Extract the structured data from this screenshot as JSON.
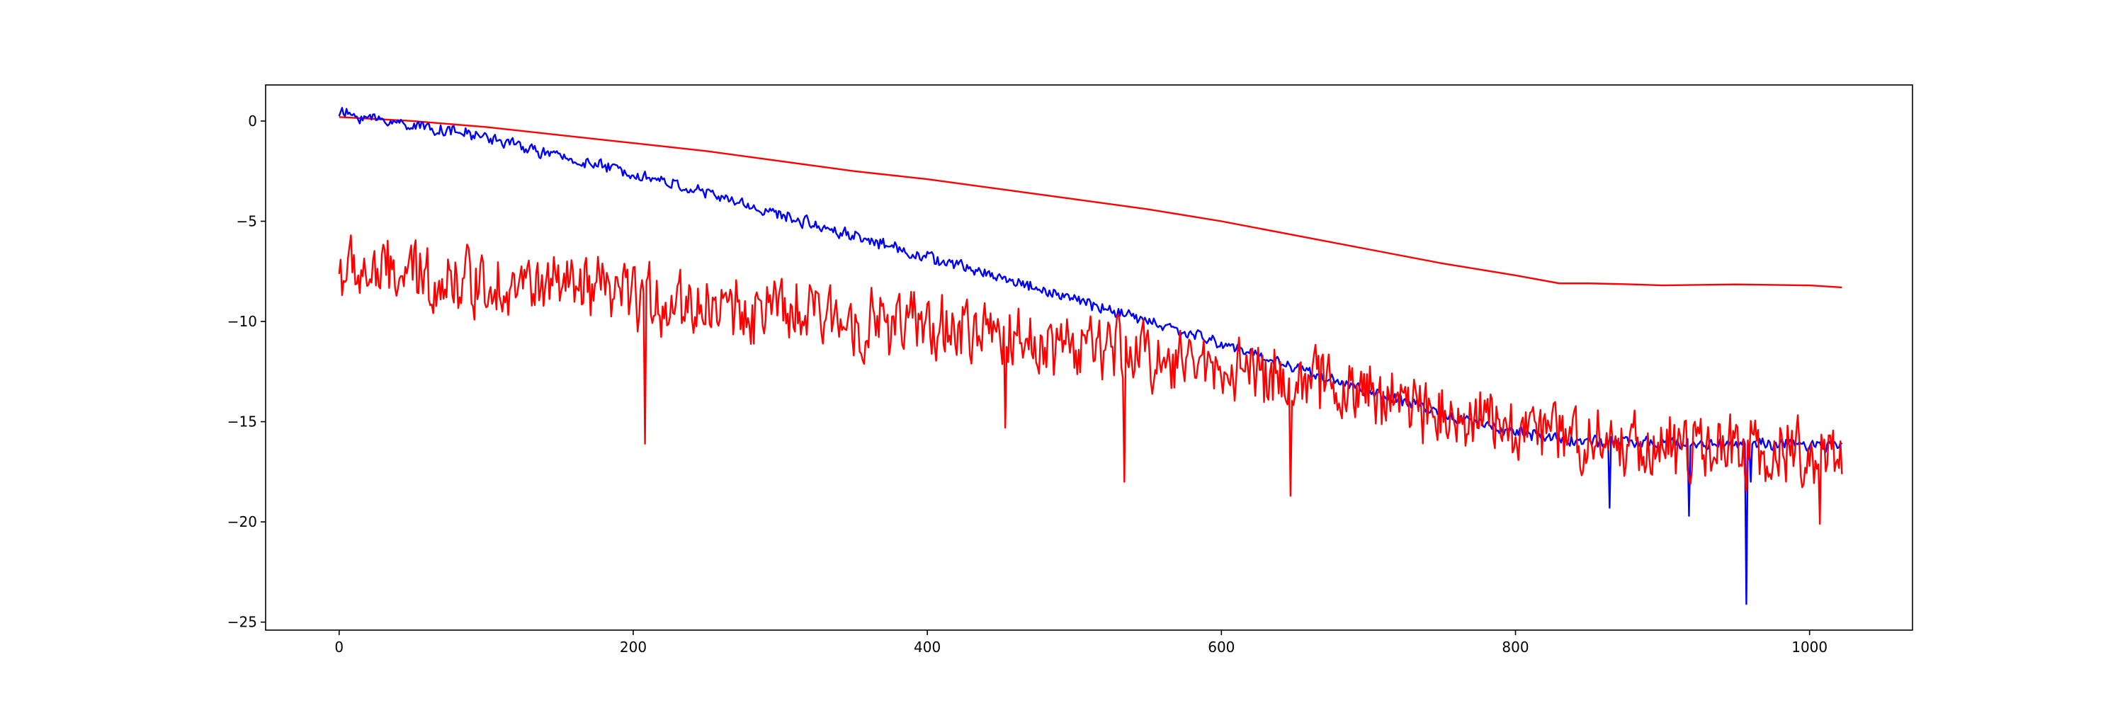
{
  "chart_data": {
    "type": "line",
    "title": "",
    "xlabel": "",
    "ylabel": "",
    "xlim": [
      -50,
      1070
    ],
    "ylim": [
      -25.4,
      1.8
    ],
    "grid": false,
    "legend": "none",
    "x_ticks": [
      0,
      200,
      400,
      600,
      800,
      1000
    ],
    "x_tick_labels": [
      "0",
      "200",
      "400",
      "600",
      "800",
      "1000"
    ],
    "y_ticks": [
      0,
      -5,
      -10,
      -15,
      -20,
      -25
    ],
    "y_tick_labels": [
      "0",
      "−5",
      "−10",
      "−15",
      "−20",
      "−25"
    ],
    "series": [
      {
        "color": "#ff0000",
        "kind": "smooth",
        "points": [
          [
            0,
            0.2
          ],
          [
            50,
            0.0
          ],
          [
            100,
            -0.3
          ],
          [
            150,
            -0.7
          ],
          [
            200,
            -1.1
          ],
          [
            250,
            -1.5
          ],
          [
            300,
            -2.0
          ],
          [
            350,
            -2.5
          ],
          [
            400,
            -2.9
          ],
          [
            450,
            -3.4
          ],
          [
            500,
            -3.9
          ],
          [
            550,
            -4.4
          ],
          [
            600,
            -5.0
          ],
          [
            650,
            -5.7
          ],
          [
            700,
            -6.4
          ],
          [
            750,
            -7.1
          ],
          [
            800,
            -7.7
          ],
          [
            830,
            -8.1
          ],
          [
            850,
            -8.1
          ],
          [
            880,
            -8.15
          ],
          [
            900,
            -8.2
          ],
          [
            950,
            -8.15
          ],
          [
            1000,
            -8.2
          ],
          [
            1022,
            -8.3
          ]
        ]
      },
      {
        "color": "#0000ff",
        "kind": "noisy",
        "points": [
          [
            0,
            0.4
          ],
          [
            50,
            -0.2
          ],
          [
            100,
            -0.8
          ],
          [
            150,
            -1.8
          ],
          [
            200,
            -2.6
          ],
          [
            250,
            -3.6
          ],
          [
            300,
            -4.7
          ],
          [
            350,
            -5.7
          ],
          [
            400,
            -6.8
          ],
          [
            450,
            -7.8
          ],
          [
            500,
            -8.9
          ],
          [
            550,
            -10.0
          ],
          [
            600,
            -11.1
          ],
          [
            650,
            -12.3
          ],
          [
            700,
            -13.5
          ],
          [
            750,
            -14.6
          ],
          [
            800,
            -15.5
          ],
          [
            850,
            -16.0
          ],
          [
            900,
            -16.1
          ],
          [
            950,
            -16.1
          ],
          [
            1000,
            -16.2
          ],
          [
            1022,
            -16.2
          ]
        ],
        "noise": 0.25,
        "spikes": [
          [
            864,
            -19.3
          ],
          [
            918,
            -19.7
          ],
          [
            957,
            -24.1
          ],
          [
            960,
            -18.0
          ]
        ]
      },
      {
        "color": "#ff0000",
        "kind": "noisy",
        "points": [
          [
            0,
            -7.5
          ],
          [
            100,
            -8.0
          ],
          [
            200,
            -8.8
          ],
          [
            300,
            -9.6
          ],
          [
            400,
            -10.3
          ],
          [
            500,
            -11.2
          ],
          [
            600,
            -12.2
          ],
          [
            700,
            -13.6
          ],
          [
            800,
            -15.3
          ],
          [
            900,
            -16.3
          ],
          [
            1000,
            -16.6
          ],
          [
            1022,
            -16.5
          ]
        ],
        "noise": 1.4,
        "spikes": [
          [
            208,
            -16.1
          ],
          [
            453,
            -15.3
          ],
          [
            534,
            -18.0
          ],
          [
            647,
            -18.7
          ],
          [
            1007,
            -20.1
          ]
        ]
      }
    ]
  }
}
